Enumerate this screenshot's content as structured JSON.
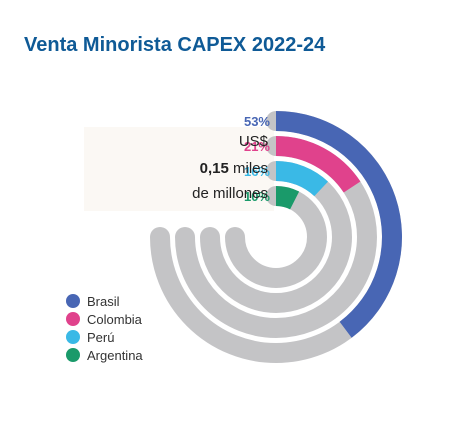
{
  "chart_data": {
    "type": "radial-bar",
    "title": "Venta Minorista CAPEX 2022-24",
    "total": {
      "currency": "US$",
      "amount": "0,15",
      "unit_suffix": " miles",
      "unit_line2": "de millones"
    },
    "series": [
      {
        "name": "Brasil",
        "value": 53,
        "label": "53%",
        "color": "#4866b4"
      },
      {
        "name": "Colombia",
        "value": 21,
        "label": "21%",
        "color": "#e0428c"
      },
      {
        "name": "Perú",
        "value": 16,
        "label": "16%",
        "color": "#3ab9e6"
      },
      {
        "name": "Argentina",
        "value": 10,
        "label": "10%",
        "color": "#1a9a6a"
      }
    ],
    "track_color": "#c4c4c6"
  }
}
